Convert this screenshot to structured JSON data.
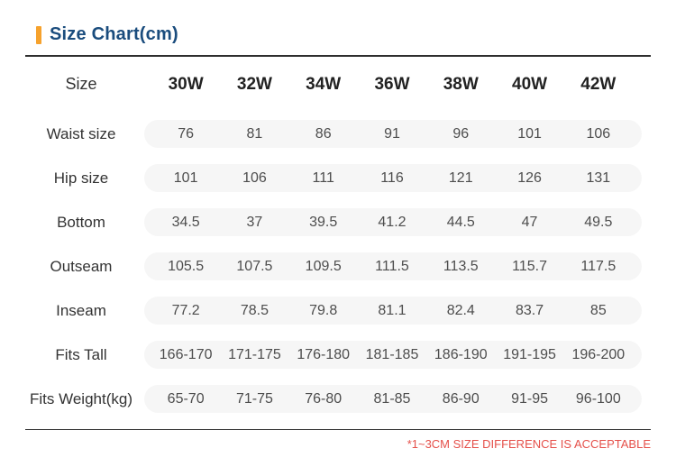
{
  "colors": {
    "accent": "#f6a22d",
    "heading": "#1a4c7d",
    "note": "#e5504a",
    "pill": "#f6f6f6",
    "line": "#2e2e2e"
  },
  "title": {
    "text": "Size Chart(cm)"
  },
  "table": {
    "header": {
      "label": "Size",
      "columns": [
        "30W",
        "32W",
        "34W",
        "36W",
        "38W",
        "40W",
        "42W"
      ]
    },
    "rows": [
      {
        "label": "Waist size",
        "values": [
          "76",
          "81",
          "86",
          "91",
          "96",
          "101",
          "106"
        ]
      },
      {
        "label": "Hip size",
        "values": [
          "101",
          "106",
          "111",
          "116",
          "121",
          "126",
          "131"
        ]
      },
      {
        "label": "Bottom",
        "values": [
          "34.5",
          "37",
          "39.5",
          "41.2",
          "44.5",
          "47",
          "49.5"
        ]
      },
      {
        "label": "Outseam",
        "values": [
          "105.5",
          "107.5",
          "109.5",
          "111.5",
          "113.5",
          "115.7",
          "117.5"
        ]
      },
      {
        "label": "Inseam",
        "values": [
          "77.2",
          "78.5",
          "79.8",
          "81.1",
          "82.4",
          "83.7",
          "85"
        ]
      },
      {
        "label": "Fits Tall",
        "values": [
          "166-170",
          "171-175",
          "176-180",
          "181-185",
          "186-190",
          "191-195",
          "196-200"
        ]
      },
      {
        "label": "Fits Weight(kg)",
        "values": [
          "65-70",
          "71-75",
          "76-80",
          "81-85",
          "86-90",
          "91-95",
          "96-100"
        ]
      }
    ]
  },
  "footnote": {
    "text": "*1~3CM SIZE DIFFERENCE IS ACCEPTABLE"
  }
}
